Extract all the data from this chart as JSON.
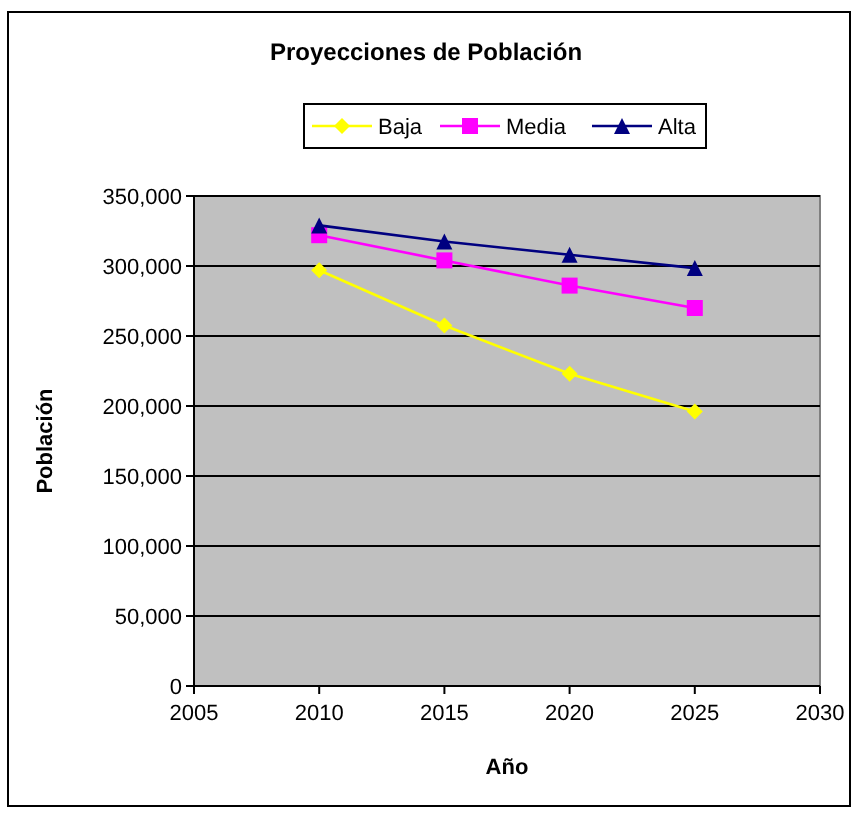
{
  "chart_data": {
    "type": "line",
    "title": "Proyecciones de Población",
    "xlabel": "Año",
    "ylabel": "Población",
    "x": [
      2010,
      2015,
      2020,
      2025
    ],
    "series": [
      {
        "name": "Baja",
        "color": "#ffff00",
        "marker": "diamond",
        "values": [
          297000,
          257500,
          223000,
          196000
        ]
      },
      {
        "name": "Media",
        "color": "#ff00ff",
        "marker": "square",
        "values": [
          322000,
          304000,
          286000,
          270000
        ]
      },
      {
        "name": "Alta",
        "color": "#000080",
        "marker": "triangle",
        "values": [
          329000,
          317500,
          308000,
          298500
        ]
      }
    ],
    "xlim": [
      2005,
      2030
    ],
    "xticks": [
      2005,
      2010,
      2015,
      2020,
      2025,
      2030
    ],
    "ylim": [
      0,
      350000
    ],
    "yticks": [
      {
        "value": 0,
        "label": "0"
      },
      {
        "value": 50000,
        "label": "50,000"
      },
      {
        "value": 100000,
        "label": "100,000"
      },
      {
        "value": 150000,
        "label": "150,000"
      },
      {
        "value": 200000,
        "label": "200,000"
      },
      {
        "value": 250000,
        "label": "250,000"
      },
      {
        "value": 300000,
        "label": "300,000"
      },
      {
        "value": 350000,
        "label": "350,000"
      }
    ],
    "grid": "y",
    "legend": "top"
  }
}
